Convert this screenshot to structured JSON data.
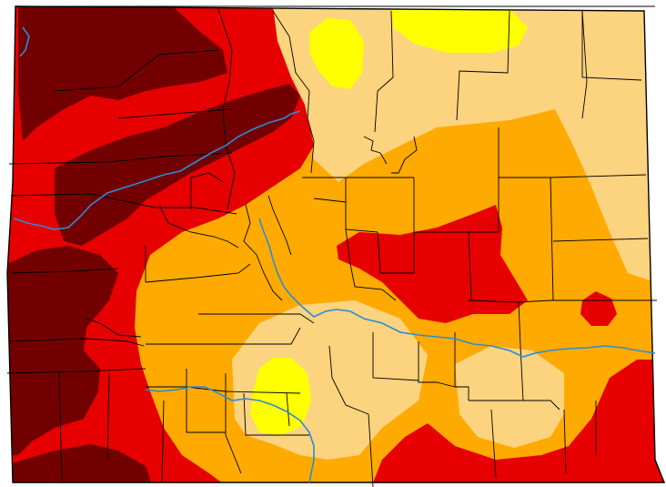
{
  "map": {
    "colors": {
      "background": "#ffffff",
      "D0": "#ffff00",
      "D1": "#fcd37f",
      "D2": "#ffaa00",
      "D3": "#e60000",
      "D4": "#730000",
      "river": "#2b8cd6",
      "boundary": "#000000"
    },
    "category_order": [
      "D0",
      "D1",
      "D2",
      "D3",
      "D4"
    ],
    "rivers": [
      "river-1",
      "river-2",
      "river-3",
      "river-4"
    ]
  }
}
